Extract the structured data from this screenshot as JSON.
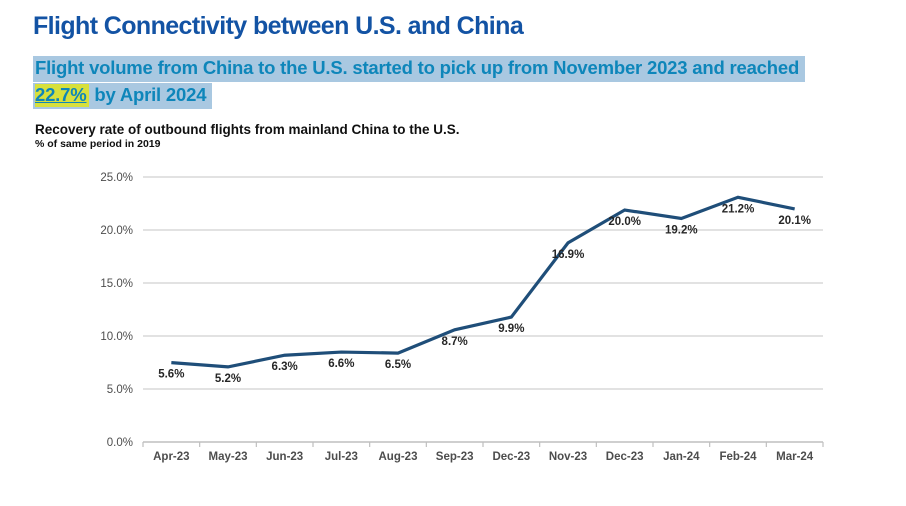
{
  "page": {
    "headline": "Flight Connectivity between U.S. and China"
  },
  "takeaway": {
    "line1": "Flight volume from China to the U.S. started to pick up from November 2023 and reached",
    "highlight_value": "22.7%",
    "line2_rest": " by April 2024"
  },
  "chart_data": {
    "type": "line",
    "title": "Recovery rate of outbound flights from mainland China to the U.S.",
    "subtitle": "% of same period in 2019",
    "categories": [
      "Apr-23",
      "May-23",
      "Jun-23",
      "Jul-23",
      "Aug-23",
      "Sep-23",
      "Dec-23",
      "Nov-23",
      "Dec-23",
      "Jan-24",
      "Feb-24",
      "Mar-24"
    ],
    "values": [
      5.6,
      5.2,
      6.3,
      6.6,
      6.5,
      8.7,
      9.9,
      16.9,
      20.0,
      19.2,
      21.2,
      20.1
    ],
    "data_labels": [
      "5.6%",
      "5.2%",
      "6.3%",
      "6.6%",
      "6.5%",
      "8.7%",
      "9.9%",
      "16.9%",
      "20.0%",
      "19.2%",
      "21.2%",
      "20.1%"
    ],
    "y_tick_labels": [
      "0.0%",
      "5.0%",
      "10.0%",
      "15.0%",
      "20.0%",
      "25.0%"
    ],
    "ylim": [
      0,
      25
    ],
    "grid": true,
    "legend": "none"
  },
  "colors": {
    "headline": "#1353a4",
    "takeaway_text": "#0e86ba",
    "takeaway_bg": "#a9c8e1",
    "highlight_bg": "#d7e03c",
    "chart_title": "#111111",
    "line": "#1f4e79",
    "grid": "#d9d9d9",
    "axis": "#bfbfbf",
    "tick_label": "#4d4d4d",
    "data_label": "#262626"
  }
}
